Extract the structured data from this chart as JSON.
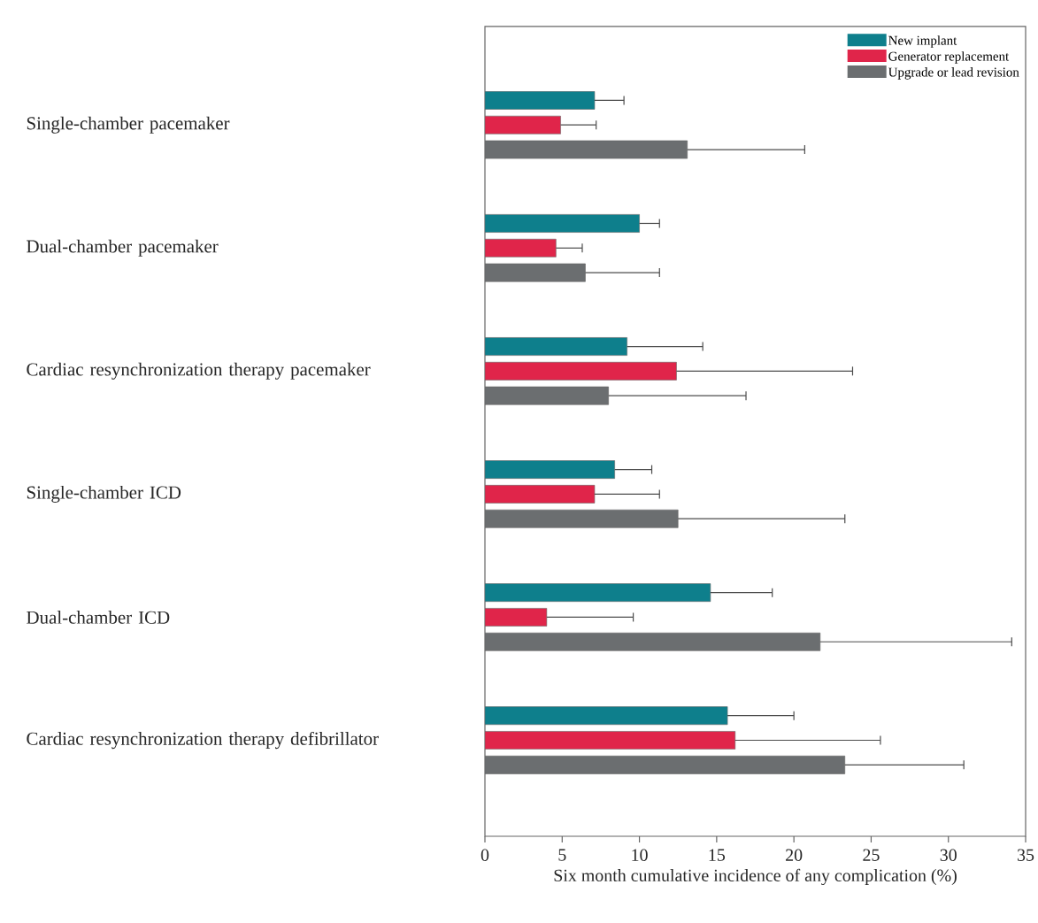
{
  "chart_data": {
    "type": "bar",
    "orientation": "horizontal",
    "xlabel": "Six month cumulative incidence of any complication (%)",
    "categories": [
      "Single-chamber pacemaker",
      "Dual-chamber pacemaker",
      "Cardiac resynchronization therapy pacemaker",
      "Single-chamber ICD",
      "Dual-chamber ICD",
      "Cardiac resynchronization therapy defibrillator"
    ],
    "series": [
      {
        "name": "New implant",
        "color": "#0e7f8c",
        "values": [
          7.1,
          10.0,
          9.2,
          8.4,
          14.6,
          15.7
        ],
        "errors": [
          [
            7.1,
            9.0
          ],
          [
            10.0,
            11.3
          ],
          [
            9.2,
            14.1
          ],
          [
            8.4,
            10.8
          ],
          [
            14.6,
            18.6
          ],
          [
            15.7,
            20.0
          ]
        ]
      },
      {
        "name": "Generator replacement",
        "color": "#e0254a",
        "values": [
          4.9,
          4.6,
          12.4,
          7.1,
          4.0,
          16.2
        ],
        "errors": [
          [
            4.9,
            7.2
          ],
          [
            4.6,
            6.3
          ],
          [
            12.4,
            23.8
          ],
          [
            7.1,
            11.3
          ],
          [
            4.0,
            9.6
          ],
          [
            16.2,
            25.6
          ]
        ]
      },
      {
        "name": "Upgrade or lead revision",
        "color": "#6b6e70",
        "values": [
          13.1,
          6.5,
          8.0,
          12.5,
          21.7,
          23.3
        ],
        "errors": [
          [
            13.1,
            20.7
          ],
          [
            6.5,
            11.3
          ],
          [
            8.0,
            16.9
          ],
          [
            12.5,
            23.3
          ],
          [
            21.7,
            34.1
          ],
          [
            23.3,
            31.0
          ]
        ]
      }
    ],
    "xlim": [
      0,
      35
    ],
    "xticks": [
      0,
      5,
      10,
      15,
      20,
      25,
      30,
      35
    ],
    "legend": "top right"
  }
}
